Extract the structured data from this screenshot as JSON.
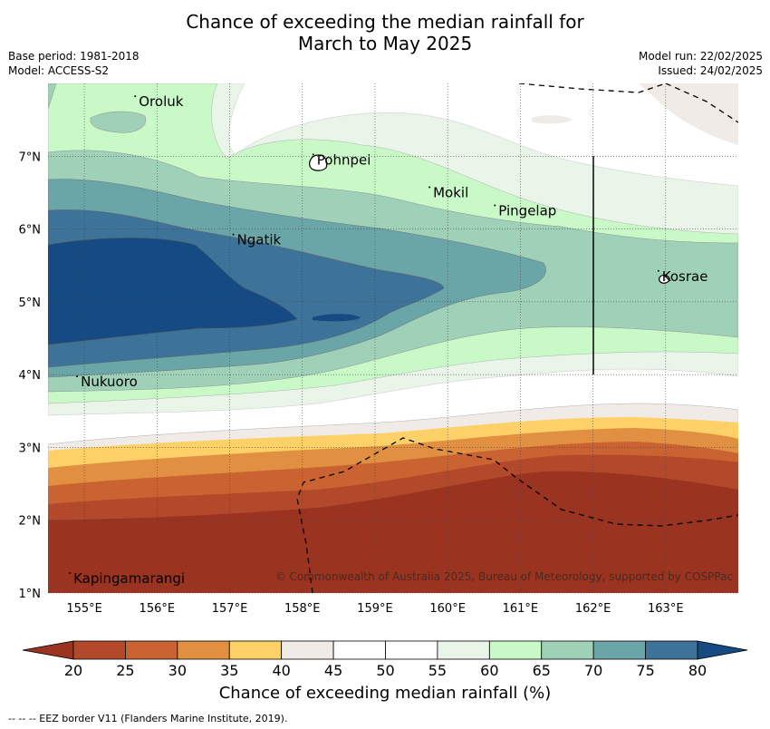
{
  "title": {
    "line1": "Chance of exceeding the median rainfall for",
    "line2": "March to May 2025"
  },
  "meta": {
    "base_period": "Base period: 1981-2018",
    "model": "Model: ACCESS-S2",
    "model_run": "Model run: 22/02/2025",
    "issued": "Issued: 24/02/2025"
  },
  "map": {
    "lon_range": [
      154.5,
      164.0
    ],
    "lat_range": [
      1.0,
      8.0
    ],
    "lon_ticks": [
      "155°E",
      "156°E",
      "157°E",
      "158°E",
      "159°E",
      "160°E",
      "161°E",
      "162°E",
      "163°E"
    ],
    "lat_ticks": [
      "1°N",
      "2°N",
      "3°N",
      "4°N",
      "5°N",
      "6°N",
      "7°N"
    ],
    "places": [
      {
        "name": "Oroluk",
        "lon": 155.75,
        "lat": 7.7
      },
      {
        "name": "Pohnpei",
        "lon": 158.2,
        "lat": 6.9
      },
      {
        "name": "Mokil",
        "lon": 159.8,
        "lat": 6.45
      },
      {
        "name": "Pingelap",
        "lon": 160.7,
        "lat": 6.2
      },
      {
        "name": "Ngatik",
        "lon": 157.1,
        "lat": 5.8
      },
      {
        "name": "Kosrae",
        "lon": 162.95,
        "lat": 5.3
      },
      {
        "name": "Nukuoro",
        "lon": 154.95,
        "lat": 3.85
      },
      {
        "name": "Kapingamarangi",
        "lon": 154.85,
        "lat": 1.15
      }
    ],
    "copyright": "© Commonwealth of Australia 2025, Bureau of Meteorology, supported by COSPPac"
  },
  "colorbar": {
    "ticks": [
      "20",
      "25",
      "30",
      "35",
      "40",
      "45",
      "50",
      "55",
      "60",
      "65",
      "70",
      "75",
      "80"
    ],
    "colors": [
      "#b2492a",
      "#c96332",
      "#e09040",
      "#fdd068",
      "#f0ebe6",
      "#ffffff",
      "#ffffff",
      "#e9f5e8",
      "#caf9c8",
      "#9fd1b9",
      "#6aa6a8",
      "#3d7399"
    ],
    "under_color": "#9a3320",
    "over_color": "#164a82",
    "label": "Chance of exceeding median rainfall (%)"
  },
  "footnote": "--  --  -- EEZ border V11 (Flanders Marine Institute, 2019)."
}
